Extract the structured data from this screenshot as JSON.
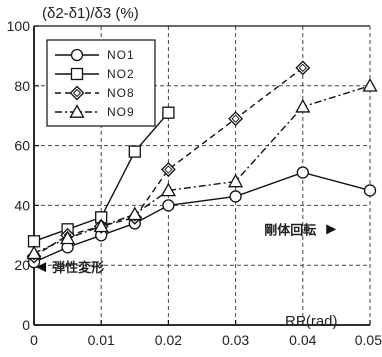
{
  "chart_data": {
    "type": "line",
    "title": "",
    "ylabel": "(δ2-δ1)/δ3 (%)",
    "xlabel": "RP(rad)",
    "xlim": [
      0,
      0.05
    ],
    "ylim": [
      0,
      100
    ],
    "xticks": [
      0,
      0.01,
      0.02,
      0.03,
      0.04,
      0.05
    ],
    "xtick_labels": [
      "0",
      "0.01",
      "0.02",
      "0.03",
      "0.04",
      "0.05"
    ],
    "yticks": [
      0,
      20,
      40,
      60,
      80,
      100
    ],
    "ytick_labels": [
      "0",
      "20",
      "40",
      "60",
      "80",
      "100"
    ],
    "grid": true,
    "legend_position": "top-left",
    "series": [
      {
        "name": "NO1",
        "marker": "circle",
        "dash": "solid",
        "x": [
          0,
          0.005,
          0.01,
          0.015,
          0.02,
          0.03,
          0.04,
          0.05
        ],
        "y": [
          21,
          26,
          30,
          34,
          40,
          43,
          51,
          45
        ]
      },
      {
        "name": "NO2",
        "marker": "square",
        "dash": "solid",
        "x": [
          0,
          0.005,
          0.01,
          0.015,
          0.02
        ],
        "y": [
          28,
          32,
          36,
          58,
          71
        ]
      },
      {
        "name": "NO8",
        "marker": "diamond",
        "dash": "dashed",
        "x": [
          0,
          0.005,
          0.01,
          0.015,
          0.02,
          0.03,
          0.04
        ],
        "y": [
          23,
          30,
          33,
          36,
          52,
          69,
          86
        ]
      },
      {
        "name": "NO9",
        "marker": "triangle",
        "dash": "dashdot",
        "x": [
          0,
          0.005,
          0.01,
          0.015,
          0.02,
          0.03,
          0.04,
          0.05
        ],
        "y": [
          24,
          29,
          33,
          37,
          45,
          48,
          73,
          80
        ]
      }
    ],
    "annotations": [
      {
        "text": "弾性変形",
        "x": 0.0015,
        "y": 18,
        "arrow": "left"
      },
      {
        "text": "剛体回転",
        "x": 0.042,
        "y": 32,
        "arrow": "right"
      }
    ]
  }
}
